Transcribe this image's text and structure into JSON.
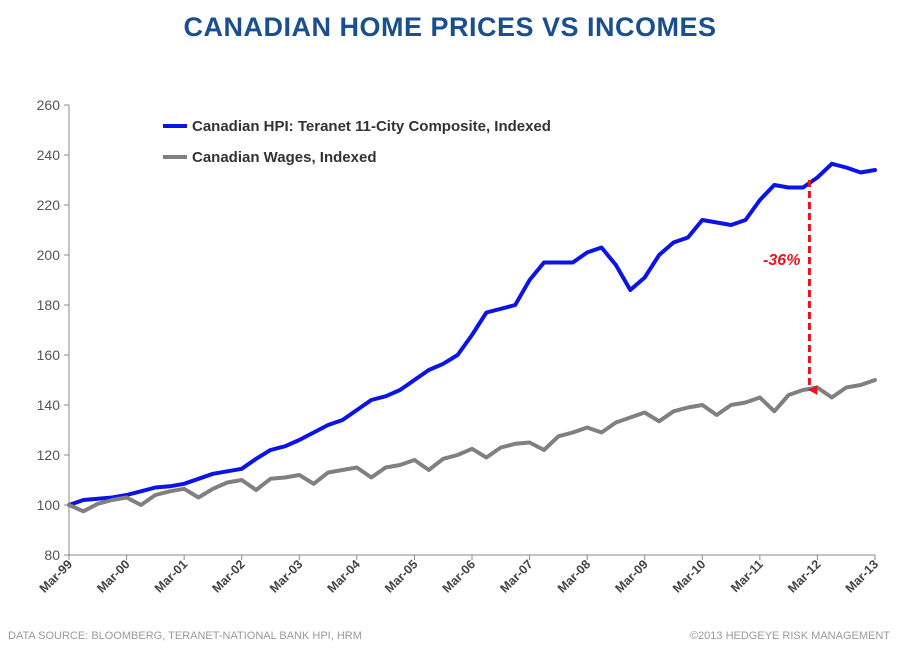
{
  "title": "CANADIAN HOME PRICES VS INCOMES",
  "footer": {
    "source": "DATA SOURCE:  BLOOMBERG, TERANET-NATIONAL BANK HPI, HRM",
    "copyright": "©2013 HEDGEYE RISK MANAGEMENT"
  },
  "chart_data": {
    "type": "line",
    "ylim": [
      80,
      260
    ],
    "yticks": [
      80,
      100,
      120,
      140,
      160,
      180,
      200,
      220,
      240,
      260
    ],
    "xticks": [
      "Mar-99",
      "Mar-00",
      "Mar-01",
      "Mar-02",
      "Mar-03",
      "Mar-04",
      "Mar-05",
      "Mar-06",
      "Mar-07",
      "Mar-08",
      "Mar-09",
      "Mar-10",
      "Mar-11",
      "Mar-12",
      "Mar-13"
    ],
    "legend": "top-left",
    "grid": false,
    "colors": {
      "hpi": "#0a14e6",
      "wages": "#808080",
      "annotation": "#e8141b"
    },
    "series": [
      {
        "name": "Canadian HPI: Teranet 11-City Composite, Indexed",
        "key": "hpi",
        "x": [
          0,
          0.25,
          0.5,
          0.75,
          1,
          1.25,
          1.5,
          1.75,
          2,
          2.25,
          2.5,
          2.75,
          3,
          3.25,
          3.5,
          3.75,
          4,
          4.25,
          4.5,
          4.75,
          5,
          5.25,
          5.5,
          5.75,
          6,
          6.25,
          6.5,
          6.75,
          7,
          7.25,
          7.5,
          7.75,
          8,
          8.25,
          8.5,
          8.75,
          9,
          9.25,
          9.5,
          9.75,
          10,
          10.25,
          10.5,
          10.75,
          11,
          11.25,
          11.5,
          11.75,
          12,
          12.25,
          12.5,
          12.75,
          13,
          13.25,
          13.5,
          13.75,
          14
        ],
        "values": [
          100,
          102,
          102.5,
          103,
          104,
          105.5,
          107,
          107.5,
          108.5,
          110.5,
          112.5,
          113.5,
          114.5,
          118.5,
          122,
          123.5,
          126,
          129,
          132,
          134,
          138,
          142,
          143.5,
          146,
          150,
          154,
          156.5,
          160,
          168,
          177,
          178.5,
          180,
          190,
          197,
          197,
          197,
          201,
          203,
          196,
          186,
          191,
          200,
          205,
          207,
          214,
          213,
          212,
          214,
          222,
          228,
          227,
          227,
          231,
          236.5,
          235,
          233,
          234
        ]
      },
      {
        "name": "Canadian Wages, Indexed",
        "key": "wages",
        "x": [
          0,
          0.25,
          0.5,
          0.75,
          1,
          1.25,
          1.5,
          1.75,
          2,
          2.25,
          2.5,
          2.75,
          3,
          3.25,
          3.5,
          3.75,
          4,
          4.25,
          4.5,
          4.75,
          5,
          5.25,
          5.5,
          5.75,
          6,
          6.25,
          6.5,
          6.75,
          7,
          7.25,
          7.5,
          7.75,
          8,
          8.25,
          8.5,
          8.75,
          9,
          9.25,
          9.5,
          9.75,
          10,
          10.25,
          10.5,
          10.75,
          11,
          11.25,
          11.5,
          11.75,
          12,
          12.25,
          12.5,
          12.75,
          13,
          13.25,
          13.5,
          13.75,
          14
        ],
        "values": [
          100,
          97.5,
          100.5,
          102,
          103,
          100,
          104,
          105.5,
          106.5,
          103,
          106.5,
          109,
          110,
          106,
          110.5,
          111,
          112,
          108.5,
          113,
          114,
          115,
          111,
          115,
          116,
          118,
          114,
          118.5,
          120,
          122.5,
          119,
          123,
          124.5,
          125,
          122,
          127.5,
          129,
          131,
          129,
          133,
          135,
          137,
          133.5,
          137.5,
          139,
          140,
          136,
          140,
          141,
          143,
          137.5,
          144,
          146,
          147,
          143,
          147,
          148,
          150
        ]
      }
    ],
    "annotations": [
      {
        "text": "-36%",
        "type": "arrow",
        "x": 13.0,
        "from": 230,
        "to": 146
      }
    ]
  }
}
